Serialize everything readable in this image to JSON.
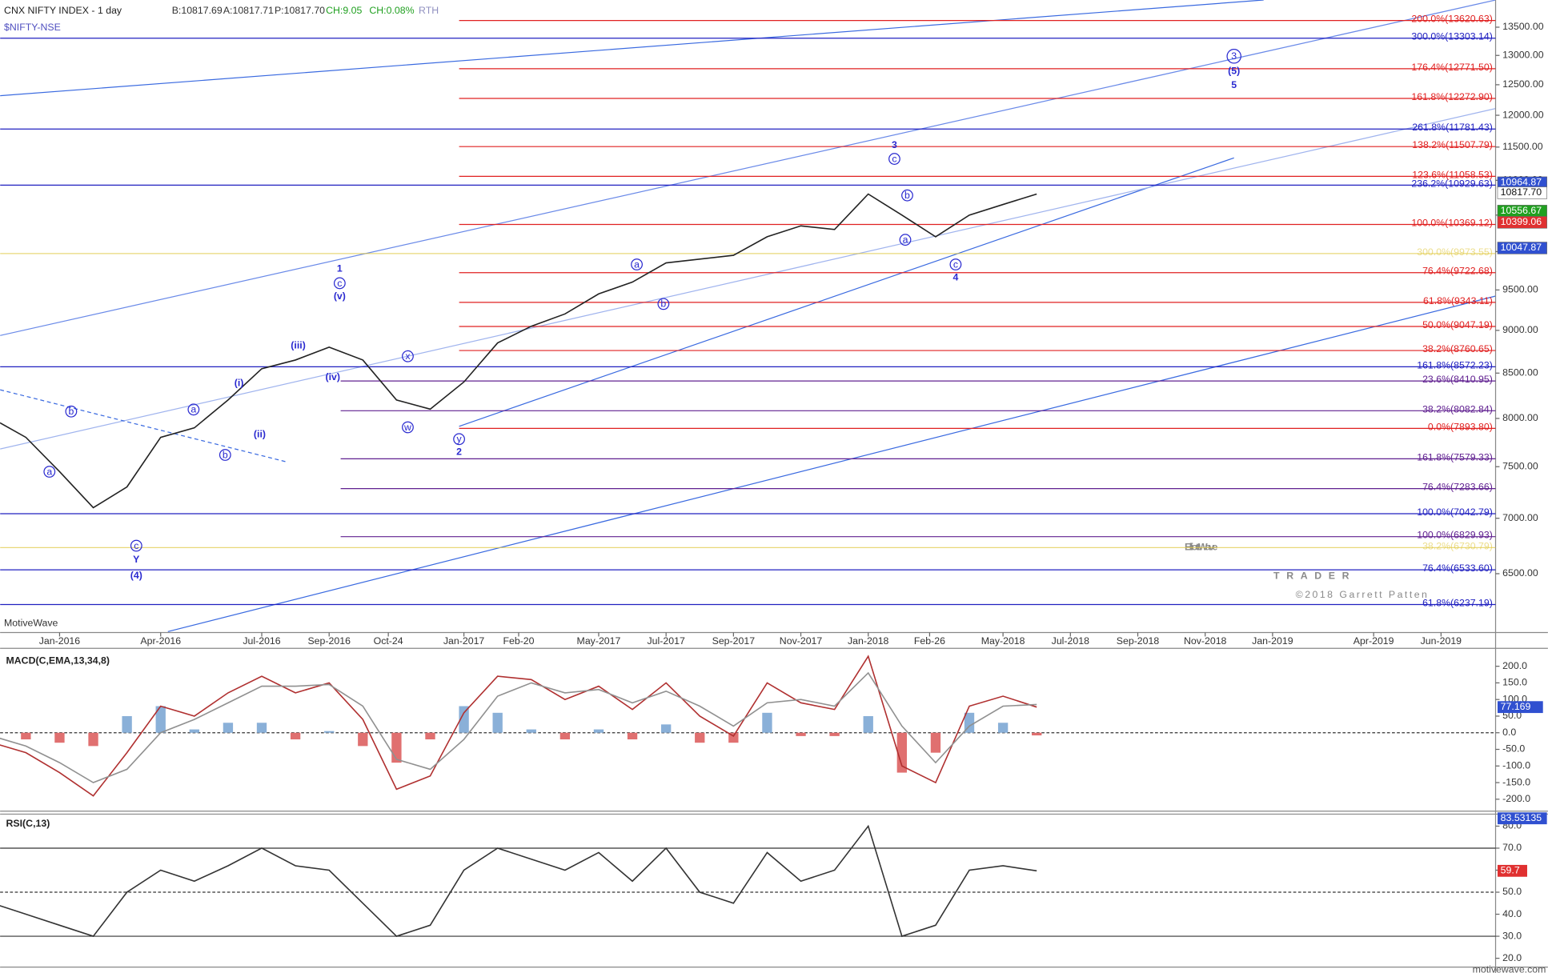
{
  "chart_data": [
    {
      "type": "line",
      "title": "CNX NIFTY INDEX - 1 day",
      "symbol": "$NIFTY-NSE",
      "quote": [
        "B:10817.69",
        "A:10817.71",
        "P:10817.70",
        "CH:9.05",
        "CH:0.08%",
        "RTH"
      ],
      "source": "MotiveWave",
      "log_scale": true,
      "x": [
        "2015-11",
        "2015-12",
        "2016-01",
        "2016-02",
        "2016-03",
        "2016-04",
        "2016-05",
        "2016-06",
        "2016-07",
        "2016-08",
        "2016-09",
        "2016-10",
        "2016-11",
        "2016-12",
        "2017-01",
        "2017-02",
        "2017-03",
        "2017-04",
        "2017-05",
        "2017-06",
        "2017-07",
        "2017-08",
        "2017-09",
        "2017-10",
        "2017-11",
        "2017-12",
        "2018-01",
        "2018-02",
        "2018-03",
        "2018-04",
        "2018-05",
        "2018-06"
      ],
      "values": [
        8000,
        7800,
        7450,
        7100,
        7300,
        7800,
        7900,
        8200,
        8550,
        8650,
        8800,
        8650,
        8200,
        8100,
        8400,
        8850,
        9050,
        9200,
        9450,
        9600,
        9850,
        9900,
        9950,
        10200,
        10350,
        10300,
        10800,
        10500,
        10200,
        10500,
        10650,
        10800
      ],
      "color": "#222222",
      "xlim": [
        "2015-11",
        "2019-08"
      ],
      "xticks": [
        {
          "value": "2016-01",
          "label": "Jan-2016"
        },
        {
          "value": "2016-04",
          "label": "Apr-2016"
        },
        {
          "value": "2016-07",
          "label": "Jul-2016"
        },
        {
          "value": "2016-09",
          "label": "Sep-2016"
        },
        {
          "value": "2016-10-24",
          "label": "Oct-24"
        },
        {
          "value": "2017-01",
          "label": "Jan-2017"
        },
        {
          "value": "2017-02-20",
          "label": "Feb-20"
        },
        {
          "value": "2017-05",
          "label": "May-2017"
        },
        {
          "value": "2017-07",
          "label": "Jul-2017"
        },
        {
          "value": "2017-09",
          "label": "Sep-2017"
        },
        {
          "value": "2017-11",
          "label": "Nov-2017"
        },
        {
          "value": "2018-01",
          "label": "Jan-2018"
        },
        {
          "value": "2018-02-26",
          "label": "Feb-26"
        },
        {
          "value": "2018-05",
          "label": "May-2018"
        },
        {
          "value": "2018-07",
          "label": "Jul-2018"
        },
        {
          "value": "2018-09",
          "label": "Sep-2018"
        },
        {
          "value": "2018-11",
          "label": "Nov-2018"
        },
        {
          "value": "2019-01",
          "label": "Jan-2019"
        },
        {
          "value": "2019-04",
          "label": "Apr-2019"
        },
        {
          "value": "2019-06",
          "label": "Jun-2019"
        }
      ],
      "ylim": [
        6000,
        14000
      ],
      "yticks": [
        {
          "value": 13500,
          "label": "13500.00"
        },
        {
          "value": 13000,
          "label": "13000.00"
        },
        {
          "value": 12500,
          "label": "12500.00"
        },
        {
          "value": 12000,
          "label": "12000.00"
        },
        {
          "value": 11500,
          "label": "11500.00"
        },
        {
          "value": 11000,
          "label": "11000.00"
        },
        {
          "value": 10500,
          "label": "10500.00"
        },
        {
          "value": 10000,
          "label": "10000.00"
        },
        {
          "value": 9500,
          "label": "9500.00"
        },
        {
          "value": 9000,
          "label": "9000.00"
        },
        {
          "value": 8500,
          "label": "8500.00"
        },
        {
          "value": 8000,
          "label": "8000.00"
        },
        {
          "value": 7500,
          "label": "7500.00"
        },
        {
          "value": 7000,
          "label": "7000.00"
        },
        {
          "value": 6500,
          "label": "6500.00"
        }
      ],
      "levels": [
        {
          "value": 13620.63,
          "label": "200.0%(13620.63)",
          "color": "#e02020"
        },
        {
          "value": 13303.14,
          "label": "300.0%(13303.14)",
          "color": "#2020c0"
        },
        {
          "value": 12771.5,
          "label": "176.4%(12771.50)",
          "color": "#e02020"
        },
        {
          "value": 12272.9,
          "label": "161.8%(12272.90)",
          "color": "#e02020"
        },
        {
          "value": 11781.43,
          "label": "261.8%(11781.43)",
          "color": "#2020c0"
        },
        {
          "value": 11507.79,
          "label": "138.2%(11507.79)",
          "color": "#e02020"
        },
        {
          "value": 11058.53,
          "label": "123.6%(11058.53)",
          "color": "#e02020"
        },
        {
          "value": 10929.63,
          "label": "236.2%(10929.63)",
          "color": "#2020c0"
        },
        {
          "value": 10369.12,
          "label": "100.0%(10369.12)",
          "color": "#e02020"
        },
        {
          "value": 9973.55,
          "label": "300.0%(9973.55)",
          "color": "#e0c840"
        },
        {
          "value": 9722.68,
          "label": "76.4%(9722.68)",
          "color": "#e02020"
        },
        {
          "value": 9343.11,
          "label": "61.8%(9343.11)",
          "color": "#e02020"
        },
        {
          "value": 9047.19,
          "label": "50.0%(9047.19)",
          "color": "#e02020"
        },
        {
          "value": 8760.65,
          "label": "38.2%(8760.65)",
          "color": "#e02020"
        },
        {
          "value": 8572.23,
          "label": "161.8%(8572.23)",
          "color": "#2020c0"
        },
        {
          "value": 8410.95,
          "label": "23.6%(8410.95)",
          "color": "#602090"
        },
        {
          "value": 8082.84,
          "label": "38.2%(8082.84)",
          "color": "#602090"
        },
        {
          "value": 7893.8,
          "label": "0.0%(7893.80)",
          "color": "#e02020"
        },
        {
          "value": 7579.33,
          "label": "161.8%(7579.33)",
          "color": "#602090"
        },
        {
          "value": 7283.66,
          "label": "76.4%(7283.66)",
          "color": "#602090"
        },
        {
          "value": 7042.79,
          "label": "100.0%(7042.79)",
          "color": "#2020c0"
        },
        {
          "value": 6829.93,
          "label": "100.0%(6829.93)",
          "color": "#602090"
        },
        {
          "value": 6730.79,
          "label": "38.2%(6730.79)",
          "color": "#e0c840"
        },
        {
          "value": 6533.6,
          "label": "76.4%(6533.60)",
          "color": "#2020c0"
        },
        {
          "value": 6237.19,
          "label": "61.8%(6237.19)",
          "color": "#2020c0"
        }
      ],
      "price_markers": [
        {
          "value": 10964.87,
          "color": "#3050d0"
        },
        {
          "value": {
            "value": 10817.7,
            "label": "10817.70"
          },
          "color": "#ffffff"
        },
        {
          "value": 10556.67,
          "color": "#20a020"
        },
        {
          "value": 10399.06,
          "color": "#e03030"
        },
        {
          "value": 10047.87,
          "color": "#3050d0"
        }
      ],
      "wave_labels": [
        "1",
        "c",
        "(v)",
        "2",
        "y",
        "3",
        "c",
        "b",
        "a",
        "4",
        "c",
        "3",
        "(5)",
        "5",
        "c",
        "Y",
        "(4)",
        "a",
        "b",
        "a",
        "b",
        "(i)",
        "(ii)",
        "(iii)",
        "(iv)",
        "x",
        "w",
        "a",
        "b"
      ]
    },
    {
      "type": "macd",
      "title": "MACD(C,EMA,13,34,8)",
      "x": [
        "2015-11",
        "2015-12",
        "2016-01",
        "2016-02",
        "2016-03",
        "2016-04",
        "2016-05",
        "2016-06",
        "2016-07",
        "2016-08",
        "2016-09",
        "2016-10",
        "2016-11",
        "2016-12",
        "2017-01",
        "2017-02",
        "2017-03",
        "2017-04",
        "2017-05",
        "2017-06",
        "2017-07",
        "2017-08",
        "2017-09",
        "2017-10",
        "2017-11",
        "2017-12",
        "2018-01",
        "2018-02",
        "2018-03",
        "2018-04",
        "2018-05",
        "2018-06"
      ],
      "series": [
        {
          "values": [
            -30,
            -60,
            -120,
            -190,
            -60,
            80,
            50,
            120,
            170,
            120,
            150,
            40,
            -170,
            -130,
            60,
            170,
            160,
            100,
            140,
            70,
            150,
            50,
            -10,
            150,
            90,
            70,
            230,
            -100,
            -150,
            80,
            110,
            77.169
          ],
          "color": "#b03030"
        },
        {
          "values": [
            -10,
            -40,
            -90,
            -150,
            -110,
            0,
            40,
            90,
            140,
            140,
            145,
            80,
            -80,
            -110,
            -20,
            110,
            150,
            120,
            130,
            90,
            125,
            80,
            20,
            90,
            100,
            80,
            180,
            20,
            -90,
            20,
            80,
            85
          ],
          "color": "#909090"
        }
      ],
      "histogram": [
        -20,
        -20,
        -30,
        -40,
        50,
        80,
        10,
        30,
        30,
        -20,
        5,
        -40,
        -90,
        -20,
        80,
        60,
        10,
        -20,
        10,
        -20,
        25,
        -30,
        -30,
        60,
        -10,
        -10,
        50,
        -120,
        -60,
        60,
        30,
        -8
      ],
      "ylim": [
        -230,
        245
      ],
      "yticks": [
        {
          "value": 200,
          "label": "200.0"
        },
        {
          "value": 150,
          "label": "150.0"
        },
        {
          "value": 100,
          "label": "100.0"
        },
        {
          "value": 50,
          "label": "50.0"
        },
        {
          "value": 0,
          "label": "0.0"
        },
        {
          "value": -50,
          "label": "-50.0"
        },
        {
          "value": -100,
          "label": "-100.0"
        },
        {
          "value": -150,
          "label": "-150.0"
        },
        {
          "value": -200,
          "label": "-200.0"
        }
      ],
      "last_value": 77.169
    },
    {
      "type": "rsi",
      "title": "RSI(C,13)",
      "x": [
        "2015-11",
        "2015-12",
        "2016-01",
        "2016-02",
        "2016-03",
        "2016-04",
        "2016-05",
        "2016-06",
        "2016-07",
        "2016-08",
        "2016-09",
        "2016-10",
        "2016-11",
        "2016-12",
        "2017-01",
        "2017-02",
        "2017-03",
        "2017-04",
        "2017-05",
        "2017-06",
        "2017-07",
        "2017-08",
        "2017-09",
        "2017-10",
        "2017-11",
        "2017-12",
        "2018-01",
        "2018-02",
        "2018-03",
        "2018-04",
        "2018-05",
        "2018-06"
      ],
      "values": [
        45,
        40,
        35,
        30,
        50,
        60,
        55,
        62,
        70,
        62,
        60,
        45,
        30,
        35,
        60,
        70,
        65,
        60,
        68,
        55,
        70,
        50,
        45,
        68,
        55,
        60,
        80,
        30,
        35,
        60,
        62,
        59.7
      ],
      "color": "#333333",
      "ylim": [
        16,
        85
      ],
      "yticks": [
        {
          "value": 80,
          "label": "80.0"
        },
        {
          "value": 70,
          "label": "70.0"
        },
        {
          "value": 60,
          "label": "60.0"
        },
        {
          "value": 50,
          "label": "50.0"
        },
        {
          "value": 40,
          "label": "40.0"
        },
        {
          "value": 30,
          "label": "30.0"
        },
        {
          "value": 20,
          "label": "20.0"
        }
      ],
      "levels": [
        70,
        50,
        30
      ],
      "last_value": 59.7,
      "markers": [
        83.53135
      ]
    }
  ],
  "watermark": {
    "brand": "ElliottWave",
    "tagline": "TRADER",
    "copyright": "©2018 Garrett Patten"
  },
  "footer": "motivewave.com"
}
